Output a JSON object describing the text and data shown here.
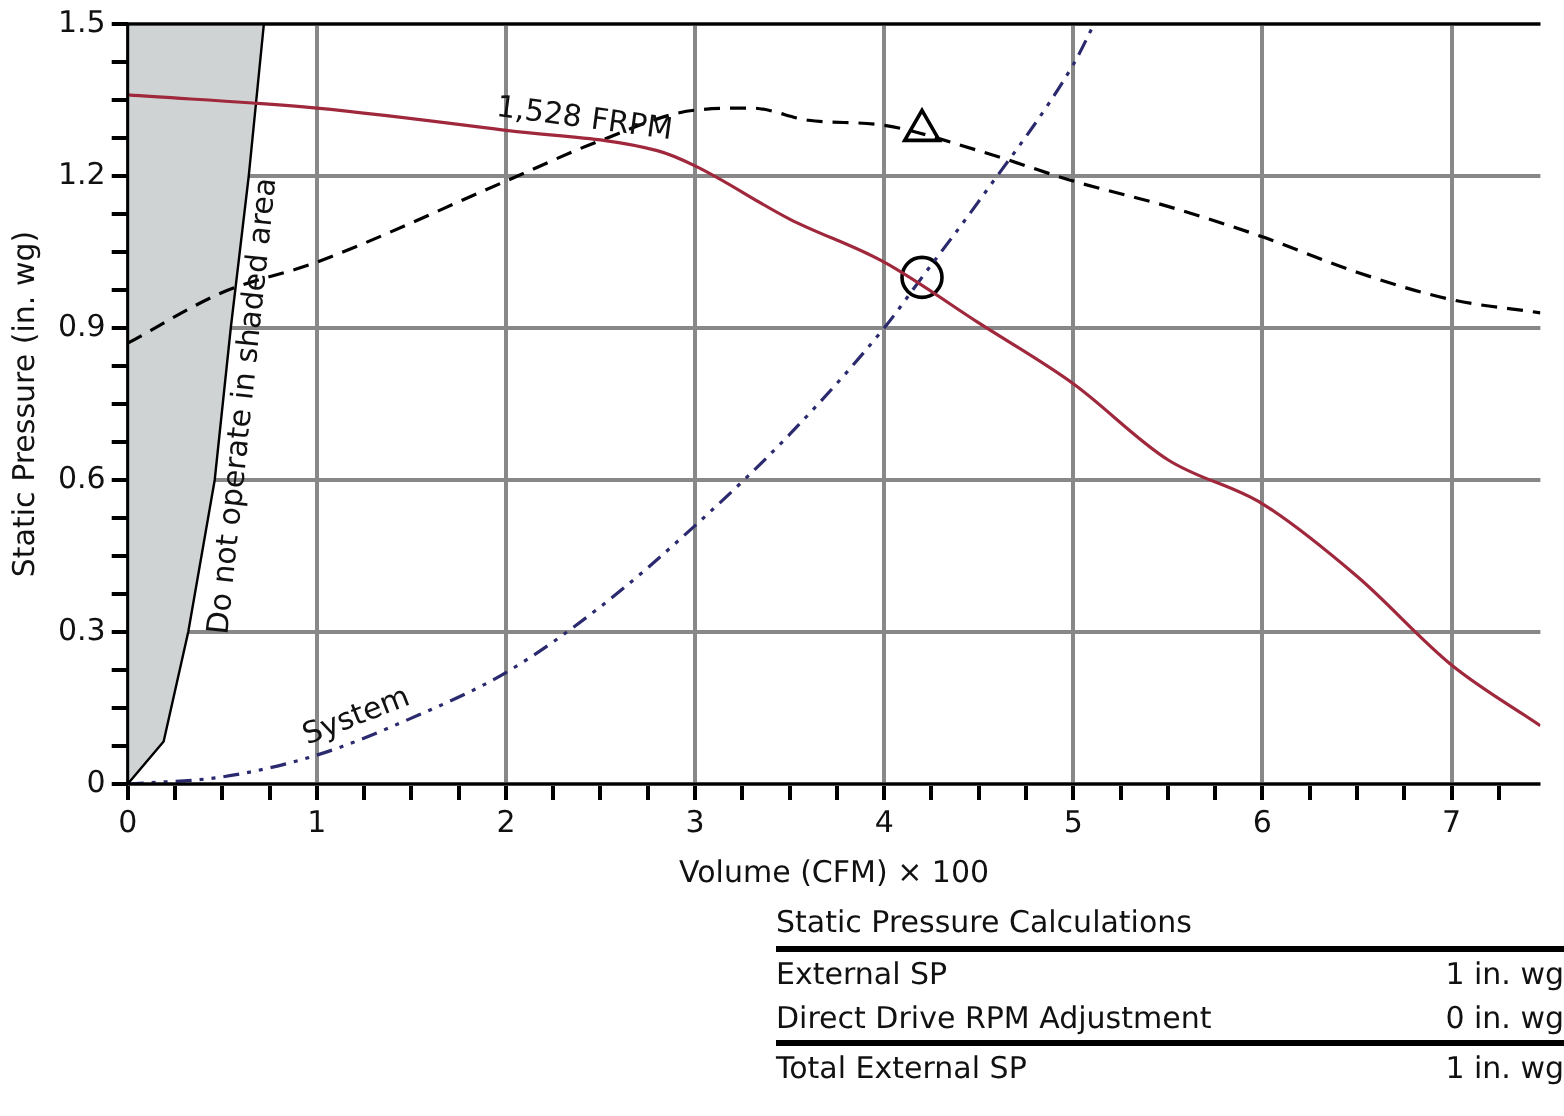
{
  "chart_data": {
    "type": "line",
    "xlabel": "Volume (CFM) × 100",
    "ylabel": "Static Pressure (in. wg)",
    "xlim": [
      0,
      7.47
    ],
    "ylim": [
      0,
      1.5
    ],
    "xticks": [
      0,
      {
        "value": 0.25,
        "label": null
      },
      {
        "value": 0.5,
        "label": null
      },
      {
        "value": 0.75,
        "label": null
      },
      1,
      {
        "value": 1.25,
        "label": null
      },
      {
        "value": 1.5,
        "label": null
      },
      {
        "value": 1.75,
        "label": null
      },
      2,
      {
        "value": 2.25,
        "label": null
      },
      {
        "value": 2.5,
        "label": null
      },
      {
        "value": 2.75,
        "label": null
      },
      3,
      {
        "value": 3.25,
        "label": null
      },
      {
        "value": 3.5,
        "label": null
      },
      {
        "value": 3.75,
        "label": null
      },
      4,
      {
        "value": 4.25,
        "label": null
      },
      {
        "value": 4.5,
        "label": null
      },
      {
        "value": 4.75,
        "label": null
      },
      5,
      {
        "value": 5.25,
        "label": null
      },
      {
        "value": 5.5,
        "label": null
      },
      {
        "value": 5.75,
        "label": null
      },
      6,
      {
        "value": 6.25,
        "label": null
      },
      {
        "value": 6.5,
        "label": null
      },
      {
        "value": 6.75,
        "label": null
      },
      7,
      {
        "value": 7.25,
        "label": null
      }
    ],
    "yticks": [
      0,
      {
        "value": 0.075,
        "label": null
      },
      {
        "value": 0.15,
        "label": null
      },
      {
        "value": 0.225,
        "label": null
      },
      0.3,
      {
        "value": 0.375,
        "label": null
      },
      {
        "value": 0.45,
        "label": null
      },
      {
        "value": 0.525,
        "label": null
      },
      0.6,
      {
        "value": 0.675,
        "label": null
      },
      {
        "value": 0.75,
        "label": null
      },
      {
        "value": 0.825,
        "label": null
      },
      0.9,
      {
        "value": 0.975,
        "label": null
      },
      {
        "value": 1.05,
        "label": null
      },
      {
        "value": 1.125,
        "label": null
      },
      1.2,
      {
        "value": 1.275,
        "label": null
      },
      {
        "value": 1.35,
        "label": null
      },
      {
        "value": 1.425,
        "label": null
      },
      1.5
    ],
    "grid": true,
    "legend": false,
    "series": [
      {
        "type": "area",
        "name": "Do not operate in shaded area",
        "color": "#d0d3d3",
        "x": [
          0,
          0.19,
          0.32,
          0.46,
          0.545,
          0.64,
          0.72,
          0
        ],
        "values": [
          0,
          0.084,
          0.3,
          0.6,
          0.9,
          1.2,
          1.5,
          1.5
        ]
      },
      {
        "name": "1,528 FRPM",
        "color": "#a0283c",
        "line_style": "solid",
        "x": [
          0,
          1,
          2,
          2.8,
          3,
          3.5,
          4,
          4.5,
          5,
          5.5,
          6,
          6.5,
          7,
          7.47
        ],
        "values": [
          1.36,
          1.334,
          1.29,
          1.25,
          1.22,
          1.115,
          1.03,
          0.91,
          0.79,
          0.64,
          0.553,
          0.41,
          0.235,
          0.115
        ]
      },
      {
        "color": "#000000",
        "line_style": "dashed",
        "x": [
          0,
          0.5,
          1,
          2,
          2.5,
          3,
          3.3,
          3.6,
          4,
          4.5,
          5,
          5.5,
          6,
          6.5,
          7,
          7.47
        ],
        "values": [
          0.87,
          0.97,
          1.03,
          1.19,
          1.27,
          1.33,
          1.334,
          1.31,
          1.3,
          1.25,
          1.19,
          1.14,
          1.08,
          1.01,
          0.956,
          0.93
        ]
      },
      {
        "name": "System",
        "color": "#2b2a6e",
        "line_style": "dashdotdot",
        "x": [
          0,
          0.5,
          1,
          1.5,
          2,
          2.5,
          3,
          3.5,
          4,
          4.2,
          4.5,
          5,
          5.11
        ],
        "values": [
          0,
          0.014,
          0.057,
          0.13,
          0.22,
          0.35,
          0.51,
          0.69,
          0.9,
          1.0,
          1.15,
          1.42,
          1.5
        ]
      },
      {
        "type": "scatter",
        "marker": "triangle",
        "color": "#000000",
        "x": [
          4.2
        ],
        "values": [
          1.29
        ]
      },
      {
        "type": "scatter",
        "marker": "circle",
        "color": "#000000",
        "x": [
          4.2
        ],
        "values": [
          1.0
        ]
      }
    ],
    "annotations": [
      "Static Pressure Calculations",
      "External SP",
      "1 in. wg",
      "Direct Drive RPM Adjustment",
      "0 in. wg",
      "Total External SP",
      "1 in. wg"
    ]
  }
}
